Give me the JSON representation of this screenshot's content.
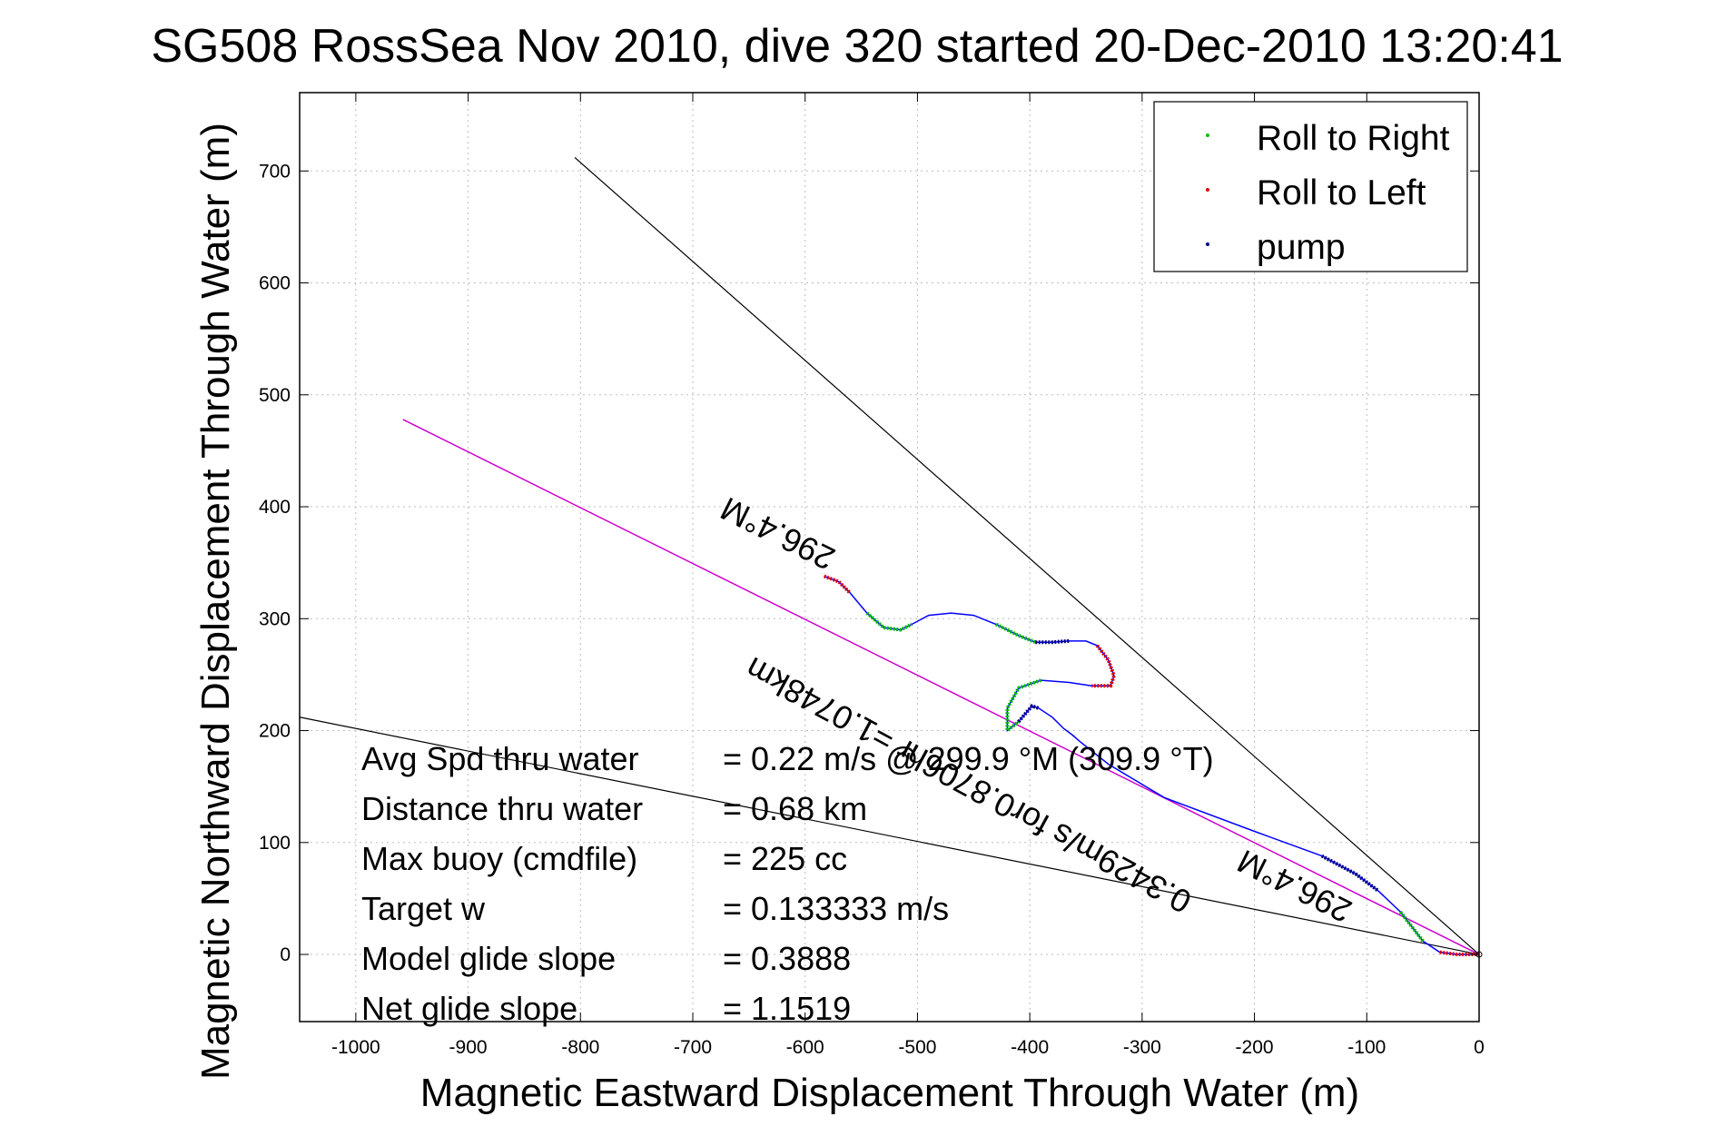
{
  "chart_data": {
    "type": "line",
    "title": "SG508 RossSea Nov 2010, dive 320 started 20-Dec-2010 13:20:41",
    "xlabel": "Magnetic Eastward Displacement Through Water (m)",
    "ylabel": "Magnetic Northward Displacement Through Water (m)",
    "xlim": [
      -1050,
      0
    ],
    "ylim": [
      -60,
      770
    ],
    "xticks": [
      -1000,
      -900,
      -800,
      -700,
      -600,
      -500,
      -400,
      -300,
      -200,
      -100,
      0
    ],
    "yticks": [
      0,
      100,
      200,
      300,
      400,
      500,
      600,
      700
    ],
    "grid": true,
    "legend_position": "top-right",
    "legend": [
      {
        "label": "Roll to Right",
        "color": "#00c000"
      },
      {
        "label": "Roll to Left",
        "color": "#e00000"
      },
      {
        "label": "pump",
        "color": "#000080"
      }
    ],
    "track": {
      "name": "glider track",
      "color": "#0000ff",
      "x": [
        -583,
        -570,
        -560,
        -545,
        -530,
        -515,
        -505,
        -490,
        -470,
        -450,
        -430,
        -410,
        -395,
        -380,
        -365,
        -350,
        -340,
        -330,
        -325,
        -328,
        -345,
        -365,
        -390,
        -410,
        -420,
        -420,
        -410,
        -398,
        -392,
        -380,
        -370,
        -362,
        -355,
        -330,
        -280,
        -200,
        -140,
        -110,
        -90,
        -70,
        -50,
        -35,
        -20,
        0
      ],
      "y": [
        338,
        333,
        323,
        305,
        292,
        290,
        295,
        303,
        305,
        303,
        295,
        285,
        279,
        279,
        280,
        280,
        276,
        263,
        249,
        240,
        240,
        243,
        245,
        238,
        220,
        200,
        208,
        222,
        220,
        212,
        202,
        196,
        190,
        170,
        140,
        110,
        88,
        72,
        57,
        38,
        12,
        2,
        0,
        0
      ],
      "roll_right_ranges": [
        [
          3,
          6
        ],
        [
          10,
          12
        ],
        [
          22,
          26
        ],
        [
          39,
          40
        ]
      ],
      "roll_left_ranges": [
        [
          0,
          2
        ],
        [
          16,
          20
        ],
        [
          41,
          43
        ]
      ],
      "pump_ranges": [
        [
          12,
          14
        ],
        [
          26,
          28
        ],
        [
          36,
          38
        ]
      ]
    },
    "heading_line": {
      "color": "#cc00cc",
      "x": [
        -958,
        0
      ],
      "y": [
        478,
        0
      ],
      "labels": [
        {
          "text": "296.4°M",
          "x": -620,
          "y": 385
        },
        {
          "text": "296.4°M",
          "x": -160,
          "y": 70
        }
      ]
    },
    "current_line": {
      "label": "0.3429m/s for0.8706hr =1.0748km",
      "label_x": -450,
      "label_y": 160
    },
    "envelope_lines": {
      "color": "#000000",
      "lines": [
        {
          "x": [
            -805,
            0
          ],
          "y": [
            712,
            0
          ]
        },
        {
          "x": [
            -1050,
            0
          ],
          "y": [
            212,
            0
          ]
        }
      ]
    },
    "stats": [
      {
        "label": "Avg Spd thru water",
        "value": "=  0.22 m/s @ 299.9 °M (309.9 °T)"
      },
      {
        "label": "Distance thru water",
        "value": "=  0.68 km"
      },
      {
        "label": "Max buoy (cmdfile)",
        "value": "= 225 cc"
      },
      {
        "label": "Target w",
        "value": "= 0.133333 m/s"
      },
      {
        "label": "Model glide slope",
        "value": "= 0.3888"
      },
      {
        "label": "Net glide slope",
        "value": "= 1.1519"
      }
    ]
  }
}
